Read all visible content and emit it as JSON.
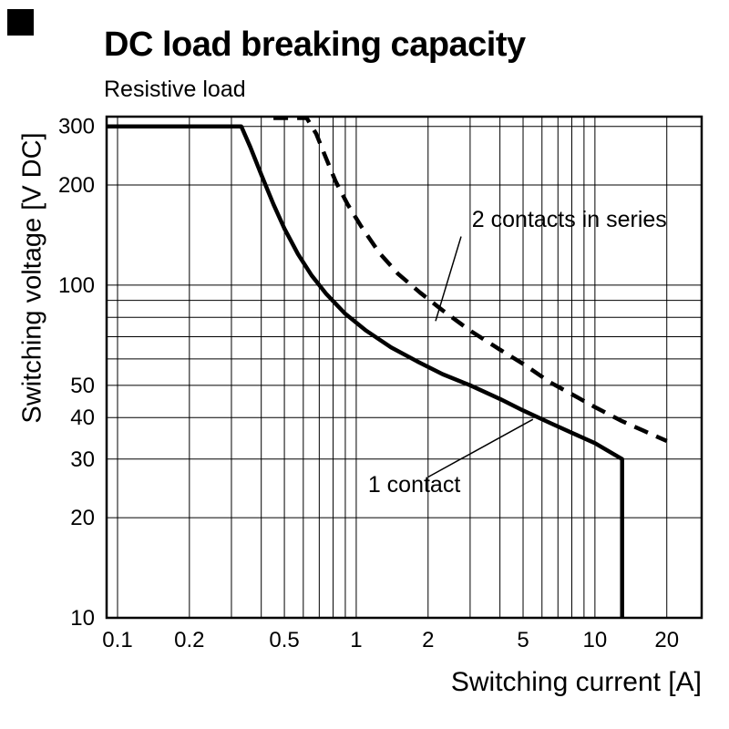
{
  "title": "DC load breaking capacity",
  "subtitle": "Resistive load",
  "chart_data": {
    "type": "line",
    "title": "DC load breaking capacity",
    "subtitle": "Resistive load",
    "xlabel": "Switching current [A]",
    "ylabel": "Switching voltage [V DC]",
    "x_scale": "log",
    "y_scale": "log",
    "xlim": [
      0.09,
      28
    ],
    "ylim": [
      10,
      321
    ],
    "grid": true,
    "x_ticks": {
      "values": [
        0.1,
        0.2,
        0.5,
        1,
        2,
        5,
        10,
        20
      ],
      "labels": [
        "0.1",
        "0.2",
        "0.5",
        "1",
        "2",
        "5",
        "10",
        "20"
      ]
    },
    "y_ticks": {
      "values": [
        10,
        20,
        30,
        40,
        50,
        100,
        200,
        300
      ],
      "labels": [
        "10",
        "20",
        "30",
        "40",
        "50",
        "100",
        "200",
        "300"
      ]
    },
    "x_gridlines": [
      0.1,
      0.2,
      0.3,
      0.4,
      0.5,
      0.6,
      0.7,
      0.8,
      0.9,
      1,
      2,
      3,
      4,
      5,
      6,
      7,
      8,
      9,
      10,
      20
    ],
    "y_gridlines": [
      10,
      20,
      30,
      40,
      50,
      60,
      70,
      80,
      90,
      100,
      200,
      300
    ],
    "line_color": "#000000",
    "series": [
      {
        "name": "1 contact",
        "line_style": "solid",
        "points": [
          [
            0.09,
            300
          ],
          [
            0.33,
            300
          ],
          [
            0.36,
            260
          ],
          [
            0.4,
            215
          ],
          [
            0.45,
            175
          ],
          [
            0.5,
            148
          ],
          [
            0.57,
            124
          ],
          [
            0.65,
            107
          ],
          [
            0.75,
            94
          ],
          [
            0.9,
            82
          ],
          [
            1.1,
            73
          ],
          [
            1.4,
            65
          ],
          [
            1.8,
            59
          ],
          [
            2.3,
            54
          ],
          [
            3.0,
            50
          ],
          [
            4.0,
            45.5
          ],
          [
            5.0,
            42
          ],
          [
            6.5,
            38.5
          ],
          [
            8.0,
            36
          ],
          [
            10,
            33.5
          ],
          [
            13,
            30
          ],
          [
            13,
            10
          ]
        ]
      },
      {
        "name": "2 contacts in series",
        "line_style": "dashed",
        "points": [
          [
            0.45,
            318
          ],
          [
            0.62,
            318
          ],
          [
            0.68,
            285
          ],
          [
            0.74,
            245
          ],
          [
            0.82,
            205
          ],
          [
            0.92,
            175
          ],
          [
            1.05,
            150
          ],
          [
            1.25,
            125
          ],
          [
            1.5,
            108
          ],
          [
            1.85,
            95
          ],
          [
            2.3,
            84
          ],
          [
            3.0,
            73
          ],
          [
            4.0,
            64
          ],
          [
            5.0,
            58
          ],
          [
            6.5,
            51
          ],
          [
            8.0,
            47
          ],
          [
            10,
            43
          ],
          [
            13,
            39
          ],
          [
            16,
            36.5
          ],
          [
            20,
            34
          ]
        ]
      }
    ],
    "annotations": [
      {
        "text": "2 contacts in series",
        "text_anchor": [
          3.05,
          143
        ],
        "leader_line": [
          [
            2.75,
            140
          ],
          [
            2.15,
            78
          ]
        ]
      },
      {
        "text": "1 contact",
        "text_anchor": [
          1.12,
          22.8
        ],
        "leader_line": [
          [
            2.0,
            26.5
          ],
          [
            5.5,
            39.5
          ]
        ]
      }
    ]
  }
}
